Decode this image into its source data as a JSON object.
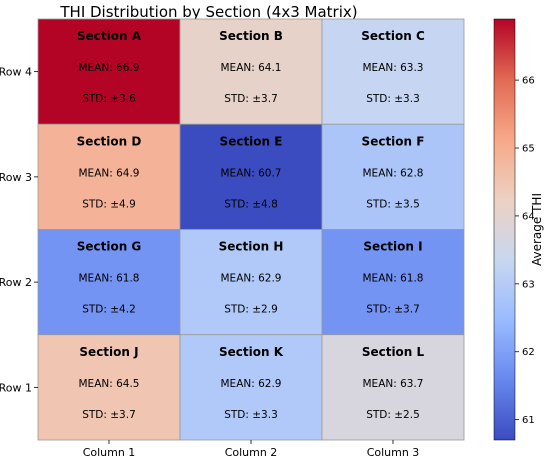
{
  "chart_data": {
    "type": "heatmap",
    "title": "THI Distribution by Section (4x3 Matrix)",
    "row_labels": [
      "Row 4",
      "Row 3",
      "Row 2",
      "Row 1"
    ],
    "column_labels": [
      "Column 1",
      "Column 2",
      "Column 3"
    ],
    "cells": [
      [
        {
          "section": "Section A",
          "mean": 66.9,
          "std": 3.6,
          "mean_label": "MEAN: 66.9",
          "std_label": "STD: ±3.6"
        },
        {
          "section": "Section B",
          "mean": 64.1,
          "std": 3.7,
          "mean_label": "MEAN: 64.1",
          "std_label": "STD: ±3.7"
        },
        {
          "section": "Section C",
          "mean": 63.3,
          "std": 3.3,
          "mean_label": "MEAN: 63.3",
          "std_label": "STD: ±3.3"
        }
      ],
      [
        {
          "section": "Section D",
          "mean": 64.9,
          "std": 4.9,
          "mean_label": "MEAN: 64.9",
          "std_label": "STD: ±4.9"
        },
        {
          "section": "Section E",
          "mean": 60.7,
          "std": 4.8,
          "mean_label": "MEAN: 60.7",
          "std_label": "STD: ±4.8"
        },
        {
          "section": "Section F",
          "mean": 62.8,
          "std": 3.5,
          "mean_label": "MEAN: 62.8",
          "std_label": "STD: ±3.5"
        }
      ],
      [
        {
          "section": "Section G",
          "mean": 61.8,
          "std": 4.2,
          "mean_label": "MEAN: 61.8",
          "std_label": "STD: ±4.2"
        },
        {
          "section": "Section H",
          "mean": 62.9,
          "std": 2.9,
          "mean_label": "MEAN: 62.9",
          "std_label": "STD: ±2.9"
        },
        {
          "section": "Section I",
          "mean": 61.8,
          "std": 3.7,
          "mean_label": "MEAN: 61.8",
          "std_label": "STD: ±3.7"
        }
      ],
      [
        {
          "section": "Section J",
          "mean": 64.5,
          "std": 3.7,
          "mean_label": "MEAN: 64.5",
          "std_label": "STD: ±3.7"
        },
        {
          "section": "Section K",
          "mean": 62.9,
          "std": 3.3,
          "mean_label": "MEAN: 62.9",
          "std_label": "STD: ±3.3"
        },
        {
          "section": "Section L",
          "mean": 63.7,
          "std": 2.5,
          "mean_label": "MEAN: 63.7",
          "std_label": "STD: ±2.5"
        }
      ]
    ],
    "colorbar": {
      "label": "Average THI",
      "ticks": [
        61,
        62,
        63,
        64,
        65,
        66
      ],
      "tick_labels": [
        "61",
        "62",
        "63",
        "64",
        "65",
        "66"
      ],
      "vmin": 60.7,
      "vmax": 66.9,
      "colormap": "coolwarm"
    },
    "colormap_stops": [
      "#3b4cc0",
      "#6788ee",
      "#9abbff",
      "#c9d7f0",
      "#edd1c2",
      "#f7a889",
      "#e26952",
      "#b40426"
    ],
    "grid_color": "#999999",
    "text_color": "#000000"
  }
}
